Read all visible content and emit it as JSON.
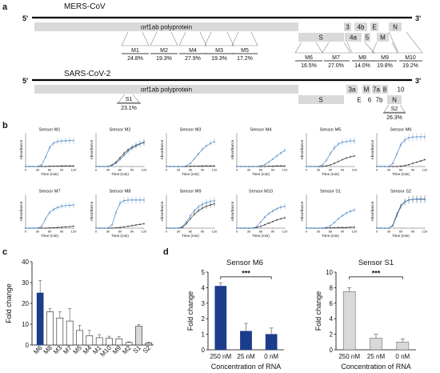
{
  "panel_letters": {
    "a": "a",
    "b": "b",
    "c": "c",
    "d": "d"
  },
  "genomes": [
    {
      "name": "MERS-CoV",
      "five": "5'",
      "three": "3'",
      "genes_row1": [
        {
          "label": "orf1ab polyprotein"
        },
        {
          "label": "3"
        },
        {
          "label": "4b"
        },
        {
          "label": "E"
        },
        {
          "label": "N"
        }
      ],
      "genes_row2": [
        {
          "label": "S"
        },
        {
          "label": "4a"
        },
        {
          "label": "5"
        },
        {
          "label": "M"
        }
      ],
      "sensors": [
        {
          "label": "M1",
          "pct": "24.8%"
        },
        {
          "label": "M2",
          "pct": "19.3%"
        },
        {
          "label": "M4",
          "pct": "27.9%"
        },
        {
          "label": "M3",
          "pct": "19.3%"
        },
        {
          "label": "M5",
          "pct": "17.2%"
        },
        {
          "label": "M6",
          "pct": "16.5%"
        },
        {
          "label": "M7",
          "pct": "27.0%"
        },
        {
          "label": "M8",
          "pct": "14.0%"
        },
        {
          "label": "M9",
          "pct": "19.8%"
        },
        {
          "label": "M10",
          "pct": "19.2%"
        }
      ]
    },
    {
      "name": "SARS-CoV-2",
      "five": "5'",
      "three": "3'",
      "genes_row1": [
        {
          "label": "orf1ab polyprotein"
        },
        {
          "label": "3a"
        },
        {
          "label": "M"
        },
        {
          "label": "7a"
        },
        {
          "label": "8"
        },
        {
          "label": "10"
        }
      ],
      "genes_row2": [
        {
          "label": "S"
        },
        {
          "label": "E"
        },
        {
          "label": "6"
        },
        {
          "label": "7b"
        },
        {
          "label": "N"
        }
      ],
      "sensors": [
        {
          "label": "S1",
          "pct": "23.1%"
        },
        {
          "label": "S2",
          "pct": "26.3%"
        }
      ]
    }
  ],
  "chart_data": [
    {
      "type": "line",
      "panel": "b",
      "xlabel": "Time (min)",
      "ylabel": "Absorbance",
      "x": [
        0,
        10,
        20,
        30,
        40,
        50,
        60,
        70,
        80,
        90,
        100,
        110,
        120
      ],
      "xticks": [
        0,
        30,
        60,
        90,
        120
      ],
      "colors": {
        "blue": "#4a86c5",
        "black": "#333333"
      },
      "panels": [
        {
          "title": "Sensor M1",
          "blue": [
            0,
            0,
            0,
            0,
            0.05,
            0.3,
            0.6,
            0.75,
            0.8,
            0.82,
            0.82,
            0.83,
            0.83
          ],
          "black": [
            0,
            0,
            0,
            0,
            0,
            0,
            0.01,
            0.01,
            0.01,
            0.02,
            0.02,
            0.02,
            0.02
          ]
        },
        {
          "title": "Sensor M2",
          "blue": [
            0,
            0,
            0,
            0,
            0.03,
            0.1,
            0.22,
            0.35,
            0.48,
            0.58,
            0.65,
            0.72,
            0.76
          ],
          "black": [
            0,
            0,
            0,
            0,
            0.05,
            0.14,
            0.28,
            0.42,
            0.53,
            0.62,
            0.68,
            0.73,
            0.78
          ]
        },
        {
          "title": "Sensor M3",
          "blue": [
            0,
            0,
            0,
            0,
            0,
            0.02,
            0.1,
            0.25,
            0.4,
            0.55,
            0.66,
            0.74,
            0.8
          ],
          "black": [
            0,
            0,
            0,
            0,
            0,
            0,
            0.01,
            0.01,
            0.01,
            0.02,
            0.02,
            0.02,
            0.02
          ]
        },
        {
          "title": "Sensor M4",
          "blue": [
            0,
            0,
            0,
            0,
            0,
            0,
            0.02,
            0.06,
            0.14,
            0.24,
            0.34,
            0.43,
            0.52
          ],
          "black": [
            0,
            0,
            0,
            0,
            0,
            0,
            0,
            0,
            0.01,
            0.01,
            0.02,
            0.02,
            0.02
          ]
        },
        {
          "title": "Sensor M5",
          "blue": [
            0,
            0,
            0,
            0,
            0.05,
            0.2,
            0.42,
            0.6,
            0.72,
            0.78,
            0.8,
            0.82,
            0.82
          ],
          "black": [
            0,
            0,
            0,
            0,
            0,
            0.02,
            0.05,
            0.1,
            0.16,
            0.22,
            0.27,
            0.31,
            0.34
          ]
        },
        {
          "title": "Sensor M6",
          "blue": [
            0,
            0,
            0,
            0,
            0.1,
            0.4,
            0.7,
            0.85,
            0.92,
            0.94,
            0.95,
            0.95,
            0.95
          ],
          "black": [
            0,
            0,
            0,
            0,
            0,
            0,
            0.01,
            0.03,
            0.06,
            0.1,
            0.14,
            0.18,
            0.22
          ]
        },
        {
          "title": "Sensor M7",
          "blue": [
            0,
            0,
            0,
            0,
            0.05,
            0.3,
            0.5,
            0.6,
            0.66,
            0.7,
            0.72,
            0.73,
            0.74
          ],
          "black": [
            0,
            0,
            0,
            0,
            0,
            0,
            0.01,
            0.01,
            0.02,
            0.03,
            0.04,
            0.05,
            0.06
          ]
        },
        {
          "title": "Sensor M8",
          "blue": [
            0,
            0,
            0,
            0,
            0.1,
            0.5,
            0.8,
            0.88,
            0.9,
            0.9,
            0.9,
            0.9,
            0.9
          ],
          "black": [
            0,
            0,
            0,
            0,
            0,
            0.01,
            0.02,
            0.04,
            0.06,
            0.08,
            0.1,
            0.12,
            0.14
          ]
        },
        {
          "title": "Sensor M9",
          "blue": [
            0,
            0,
            0,
            0,
            0.05,
            0.2,
            0.4,
            0.56,
            0.68,
            0.76,
            0.82,
            0.86,
            0.88
          ],
          "black": [
            0,
            0,
            0,
            0,
            0.02,
            0.14,
            0.3,
            0.45,
            0.56,
            0.64,
            0.7,
            0.74,
            0.78
          ]
        },
        {
          "title": "Sensor M10",
          "blue": [
            0,
            0,
            0,
            0,
            0,
            0.05,
            0.2,
            0.35,
            0.47,
            0.55,
            0.62,
            0.67,
            0.7
          ],
          "black": [
            0,
            0,
            0,
            0,
            0,
            0.02,
            0.06,
            0.11,
            0.16,
            0.21,
            0.26,
            0.3,
            0.33
          ]
        },
        {
          "title": "Sensor S1",
          "blue": [
            0,
            0,
            0,
            0,
            0,
            0.02,
            0.08,
            0.18,
            0.3,
            0.4,
            0.48,
            0.54,
            0.58
          ],
          "black": [
            0,
            0,
            0,
            0,
            0,
            0,
            0.01,
            0.01,
            0.02,
            0.02,
            0.02,
            0.03,
            0.03
          ]
        },
        {
          "title": "Sensor S2",
          "blue": [
            0,
            0,
            0,
            0,
            0.1,
            0.45,
            0.72,
            0.85,
            0.9,
            0.92,
            0.92,
            0.92,
            0.92
          ],
          "black": [
            0,
            0,
            0,
            0,
            0.08,
            0.4,
            0.7,
            0.84,
            0.9,
            0.92,
            0.93,
            0.93,
            0.93
          ]
        }
      ]
    },
    {
      "type": "bar",
      "panel": "c",
      "ylabel": "Fold change",
      "ylim": [
        0,
        40
      ],
      "yticks": [
        0,
        10,
        20,
        30,
        40
      ],
      "categories": [
        "M6",
        "M8",
        "M3",
        "M7",
        "M5",
        "M4",
        "M1",
        "M10",
        "M9",
        "M2",
        "S1",
        "S2"
      ],
      "values": [
        25,
        16,
        13,
        11.5,
        7,
        4.5,
        3.5,
        3.2,
        3.0,
        1.2,
        9,
        1
      ],
      "errors": [
        6,
        1.5,
        3,
        6,
        2.5,
        2.5,
        1.5,
        1,
        1,
        0.3,
        0.8,
        0.3
      ],
      "fills": [
        "#1c3c8c",
        "#ffffff",
        "#ffffff",
        "#ffffff",
        "#ffffff",
        "#ffffff",
        "#ffffff",
        "#ffffff",
        "#ffffff",
        "#ffffff",
        "#d9d9d9",
        "#d9d9d9"
      ]
    },
    {
      "type": "bar",
      "panel": "d",
      "title": "Sensor M6",
      "xlabel": "Concentration of RNA",
      "ylabel": "Fold change",
      "ylim": [
        0,
        5
      ],
      "yticks": [
        0,
        1,
        2,
        3,
        4,
        5
      ],
      "categories": [
        "250 nM",
        "25 nM",
        "0 nM"
      ],
      "values": [
        4.1,
        1.2,
        1.0
      ],
      "errors": [
        0.2,
        0.5,
        0.4
      ],
      "fill": "#1c3c8c",
      "significance": "***"
    },
    {
      "type": "bar",
      "panel": "d",
      "title": "Sensor S1",
      "xlabel": "Concentration of RNA",
      "ylabel": "Fold change",
      "ylim": [
        0,
        10
      ],
      "yticks": [
        0,
        2,
        4,
        6,
        8,
        10
      ],
      "categories": [
        "250 nM",
        "25 nM",
        "0 nM"
      ],
      "values": [
        7.5,
        1.5,
        1.0
      ],
      "errors": [
        0.5,
        0.5,
        0.4
      ],
      "fill": "#d9d9d9",
      "significance": "***"
    }
  ]
}
